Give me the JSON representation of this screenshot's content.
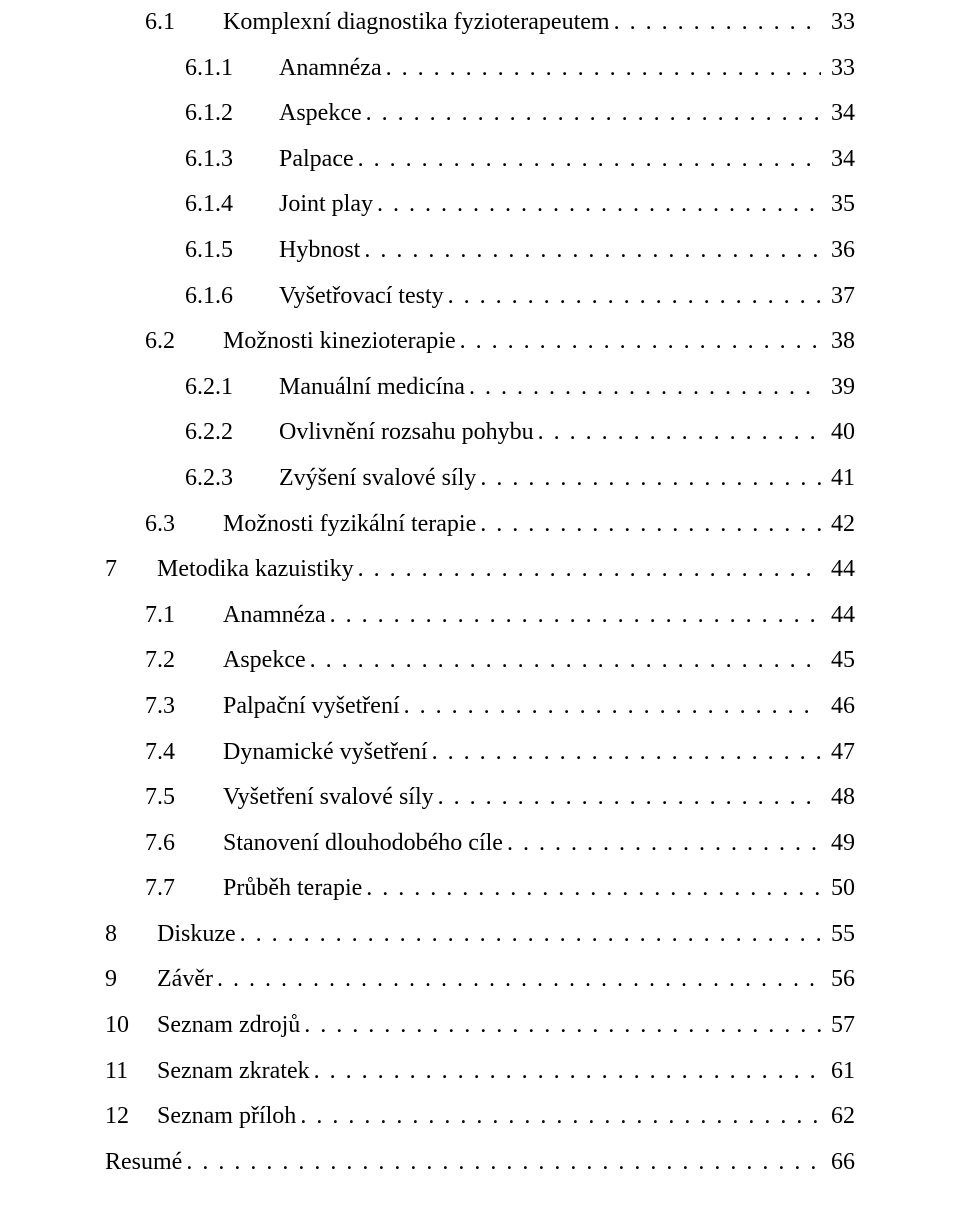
{
  "font_family": "Times New Roman",
  "font_size_pt": 18,
  "text_color": "#000000",
  "background_color": "#ffffff",
  "toc": [
    {
      "num": "6.1",
      "title": "Komplexní diagnostika fyzioterapeutem",
      "page": "33",
      "indent": 1
    },
    {
      "num": "6.1.1",
      "title": "Anamnéza",
      "page": "33",
      "indent": 2
    },
    {
      "num": "6.1.2",
      "title": "Aspekce",
      "page": "34",
      "indent": 2
    },
    {
      "num": "6.1.3",
      "title": "Palpace",
      "page": "34",
      "indent": 2
    },
    {
      "num": "6.1.4",
      "title": "Joint play",
      "page": "35",
      "indent": 2
    },
    {
      "num": "6.1.5",
      "title": "Hybnost",
      "page": "36",
      "indent": 2
    },
    {
      "num": "6.1.6",
      "title": "Vyšetřovací testy",
      "page": "37",
      "indent": 2
    },
    {
      "num": "6.2",
      "title": "Možnosti kinezioterapie",
      "page": "38",
      "indent": 1
    },
    {
      "num": "6.2.1",
      "title": "Manuální medicína",
      "page": "39",
      "indent": 2
    },
    {
      "num": "6.2.2",
      "title": "Ovlivnění rozsahu pohybu",
      "page": "40",
      "indent": 2
    },
    {
      "num": "6.2.3",
      "title": "Zvýšení svalové síly",
      "page": "41",
      "indent": 2
    },
    {
      "num": "6.3",
      "title": "Možnosti fyzikální terapie",
      "page": "42",
      "indent": 1
    },
    {
      "num": "7",
      "title": "Metodika kazuistiky",
      "page": "44",
      "indent": 0
    },
    {
      "num": "7.1",
      "title": "Anamnéza",
      "page": "44",
      "indent": 1
    },
    {
      "num": "7.2",
      "title": "Aspekce",
      "page": "45",
      "indent": 1
    },
    {
      "num": "7.3",
      "title": "Palpační vyšetření",
      "page": "46",
      "indent": 1
    },
    {
      "num": "7.4",
      "title": "Dynamické vyšetření",
      "page": "47",
      "indent": 1
    },
    {
      "num": "7.5",
      "title": "Vyšetření svalové síly",
      "page": "48",
      "indent": 1
    },
    {
      "num": "7.6",
      "title": "Stanovení dlouhodobého cíle",
      "page": "49",
      "indent": 1
    },
    {
      "num": "7.7",
      "title": "Průběh terapie",
      "page": "50",
      "indent": 1
    },
    {
      "num": "8",
      "title": "Diskuze",
      "page": "55",
      "indent": 0
    },
    {
      "num": "9",
      "title": "Závěr",
      "page": "56",
      "indent": 0
    },
    {
      "num": "10",
      "title": "Seznam zdrojů",
      "page": "57",
      "indent": 0
    },
    {
      "num": "11",
      "title": "Seznam zkratek",
      "page": "61",
      "indent": 0
    },
    {
      "num": "12",
      "title": "Seznam příloh",
      "page": "62",
      "indent": 0
    },
    {
      "num": "",
      "title": "Resumé",
      "page": "66",
      "indent": 0
    }
  ]
}
